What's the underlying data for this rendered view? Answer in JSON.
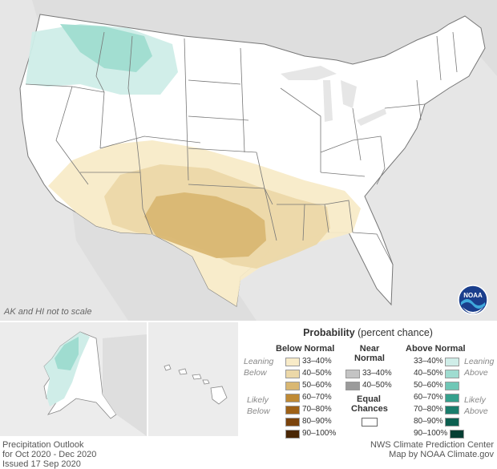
{
  "map_note": "AK and HI not to scale",
  "legend": {
    "title_bold": "Probability",
    "title_rest": " (percent chance)",
    "below": {
      "header": "Below Normal",
      "entries": [
        {
          "label": "33–40%",
          "color": "#f8ebc8"
        },
        {
          "label": "40–50%",
          "color": "#ecd8a8"
        },
        {
          "label": "50–60%",
          "color": "#d9b772"
        },
        {
          "label": "60–70%",
          "color": "#bf8a35"
        },
        {
          "label": "70–80%",
          "color": "#9e6117"
        },
        {
          "label": "80–90%",
          "color": "#7a430c"
        },
        {
          "label": "90–100%",
          "color": "#4a2705"
        }
      ]
    },
    "near": {
      "header_line1": "Near",
      "header_line2": "Normal",
      "entries": [
        {
          "label": "33–40%",
          "color": "#c4c4c4"
        },
        {
          "label": "40–50%",
          "color": "#9b9b9b"
        }
      ],
      "equal_line1": "Equal",
      "equal_line2": "Chances"
    },
    "above": {
      "header": "Above Normal",
      "entries": [
        {
          "label": "33–40%",
          "color": "#cfede8"
        },
        {
          "label": "40–50%",
          "color": "#9fdcd0"
        },
        {
          "label": "50–60%",
          "color": "#6fc7b6"
        },
        {
          "label": "60–70%",
          "color": "#35a08c"
        },
        {
          "label": "70–80%",
          "color": "#1a7d6c"
        },
        {
          "label": "80–90%",
          "color": "#0c5f50"
        },
        {
          "label": "90–100%",
          "color": "#053e33"
        }
      ]
    },
    "leaning_left": [
      "Leaning",
      "Below"
    ],
    "likely_left": [
      "Likely",
      "Below"
    ],
    "leaning_right": [
      "Leaning",
      "Above"
    ],
    "likely_right": [
      "Likely",
      "Above"
    ]
  },
  "footer_left": [
    "Precipitation Outlook",
    "for Oct 2020 - Dec 2020",
    "Issued 17 Sep 2020"
  ],
  "footer_right": [
    "NWS Climate Prediction Center",
    "Map by NOAA Climate.gov"
  ],
  "logo_text": "NOAA"
}
